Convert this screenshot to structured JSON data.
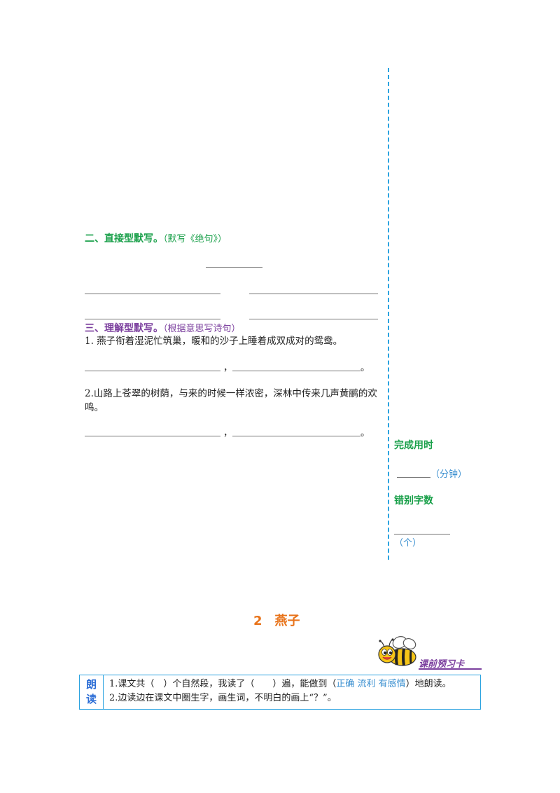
{
  "section2": {
    "title": "二、直接型默写。",
    "note": "（默写《绝句》）"
  },
  "section3": {
    "title": "三、理解型默写。",
    "note": "（根据意思写诗句）",
    "questions": [
      {
        "text": "1. 燕子衔着湿泥忙筑巢，暖和的沙子上睡着成双成对的鸳鸯。",
        "comma": "，",
        "end": "。"
      },
      {
        "text": "2.山路上苍翠的树荫，与来的时候一样浓密，深林中传来几声黄鹂的欢鸣。",
        "comma": "，",
        "end": "。"
      }
    ]
  },
  "sidebar": {
    "time_label": "完成用时",
    "time_unit": "（分钟）",
    "errors_label": "错别字数",
    "errors_unit": "（个）",
    "divider_color": "#2ba3e0"
  },
  "lesson": {
    "title": "2　燕子",
    "preview_tag": "课前预习卡"
  },
  "reading_card": {
    "heading": "朗读",
    "line1_prefix": "1.课文共（　）个自然段，我读了（　　）遍，能做到（",
    "line1_hint": "正确 流利 有感情",
    "line1_suffix": "）地朗读。",
    "line2": "2.边读边在课文中圈生字，画生词，不明白的画上“？”。"
  },
  "colors": {
    "green": "#1aa04a",
    "purple": "#7b3f9e",
    "orange": "#e8731a",
    "blue": "#2ba3e0"
  }
}
